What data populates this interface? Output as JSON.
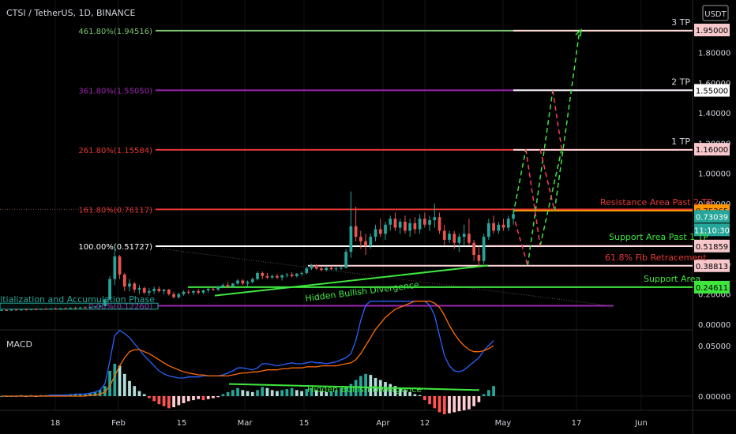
{
  "header": {
    "symbol": "CTSI / TetherUS, 1D, BINANCE"
  },
  "currency_badge": "USDT",
  "macd_label": "MACD",
  "colors": {
    "bg": "#000000",
    "up": "#26a69a",
    "down": "#ef5350",
    "green_line": "#3ee63e",
    "red_line": "#e53935",
    "purple": "#9c27b0",
    "fib_green": "#7cc36f",
    "orange": "#ff9800",
    "macd_line": "#2962ff",
    "signal_line": "#ff6d00"
  },
  "fib_levels": [
    {
      "label": "461.80%(1.94516)",
      "value": 1.94516,
      "color": "#7cc36f",
      "tp": "3 TP"
    },
    {
      "label": "361.80%(1.55050)",
      "value": 1.5505,
      "color": "#9c27b0",
      "tp": "2 TP"
    },
    {
      "label": "261.80%(1.15584)",
      "value": 1.15584,
      "color": "#e53935",
      "tp": "1 TP"
    },
    {
      "label": "161.80%(0.76117)",
      "value": 0.76117,
      "color": "#e53935",
      "tp": ""
    },
    {
      "label": "100.00%(0.51727)",
      "value": 0.51727,
      "color": "#ffffff",
      "tp": ""
    },
    {
      "label": "0.00%(0.12260)",
      "value": 0.1226,
      "color": "#9c27b0",
      "tp": ""
    }
  ],
  "annotations": {
    "resistance": "Resistance Area Past 2 TP",
    "support_past_1tp": "Support Area Past 1 TP",
    "fib_618": "61.8% Fib Retracement",
    "support_area": "Support Area",
    "hidden_div_price": "Hidden Bullish Divergence",
    "hidden_div_macd": "Hidden Bullish Divergence",
    "accumulation": "Initialization and Accumulation Phase"
  },
  "price_axis": {
    "ticks": [
      "1.80000",
      "1.60000",
      "1.40000",
      "1.20000",
      "1.00000",
      "0.80000",
      "0.40000",
      "0.20000",
      "0.00000"
    ],
    "badges": [
      {
        "text": "1.95000",
        "bg": "#f8c8cc",
        "fg": "#000000"
      },
      {
        "text": "1.55000",
        "bg": "#ffffff",
        "fg": "#000000"
      },
      {
        "text": "1.16000",
        "bg": "#f8c8cc",
        "fg": "#000000"
      },
      {
        "text": "0.75365",
        "bg": "#ff9800",
        "fg": "#000000"
      },
      {
        "text": "0.73039",
        "bg": "#26a69a",
        "fg": "#ffffff"
      },
      {
        "text": "11:10:30",
        "bg": "#26a69a",
        "fg": "#ffffff"
      },
      {
        "text": "0.51859",
        "bg": "#f8c8cc",
        "fg": "#000000"
      },
      {
        "text": "0.38813",
        "bg": "#f8c8cc",
        "fg": "#000000"
      },
      {
        "text": "0.24611",
        "bg": "#3ee63e",
        "fg": "#000000"
      }
    ]
  },
  "macd_axis": {
    "ticks": [
      "0.05000",
      "0.00000"
    ]
  },
  "time_axis": {
    "ticks": [
      "18",
      "Feb",
      "15",
      "Mar",
      "15",
      "Apr",
      "12",
      "May",
      "17",
      "Jun"
    ]
  },
  "chart_data": {
    "type": "candlestick",
    "title": "CTSI / TetherUS, 1D, BINANCE",
    "y_unit": "USDT",
    "ylim": [
      0.0,
      2.0
    ],
    "candles": [
      {
        "o": 0.092,
        "h": 0.098,
        "l": 0.088,
        "c": 0.095
      },
      {
        "o": 0.095,
        "h": 0.1,
        "l": 0.09,
        "c": 0.093
      },
      {
        "o": 0.093,
        "h": 0.099,
        "l": 0.089,
        "c": 0.097
      },
      {
        "o": 0.097,
        "h": 0.102,
        "l": 0.092,
        "c": 0.094
      },
      {
        "o": 0.094,
        "h": 0.1,
        "l": 0.09,
        "c": 0.098
      },
      {
        "o": 0.098,
        "h": 0.104,
        "l": 0.094,
        "c": 0.096
      },
      {
        "o": 0.096,
        "h": 0.102,
        "l": 0.092,
        "c": 0.1
      },
      {
        "o": 0.1,
        "h": 0.106,
        "l": 0.095,
        "c": 0.098
      },
      {
        "o": 0.098,
        "h": 0.104,
        "l": 0.094,
        "c": 0.102
      },
      {
        "o": 0.102,
        "h": 0.108,
        "l": 0.097,
        "c": 0.1
      },
      {
        "o": 0.1,
        "h": 0.107,
        "l": 0.096,
        "c": 0.104
      },
      {
        "o": 0.104,
        "h": 0.11,
        "l": 0.099,
        "c": 0.102
      },
      {
        "o": 0.102,
        "h": 0.109,
        "l": 0.098,
        "c": 0.106
      },
      {
        "o": 0.106,
        "h": 0.112,
        "l": 0.1,
        "c": 0.104
      },
      {
        "o": 0.104,
        "h": 0.112,
        "l": 0.1,
        "c": 0.109
      },
      {
        "o": 0.109,
        "h": 0.116,
        "l": 0.104,
        "c": 0.107
      },
      {
        "o": 0.107,
        "h": 0.114,
        "l": 0.103,
        "c": 0.112
      },
      {
        "o": 0.112,
        "h": 0.119,
        "l": 0.107,
        "c": 0.11
      },
      {
        "o": 0.11,
        "h": 0.118,
        "l": 0.105,
        "c": 0.115
      },
      {
        "o": 0.115,
        "h": 0.122,
        "l": 0.11,
        "c": 0.118
      },
      {
        "o": 0.118,
        "h": 0.126,
        "l": 0.112,
        "c": 0.122
      },
      {
        "o": 0.122,
        "h": 0.17,
        "l": 0.12,
        "c": 0.165
      },
      {
        "o": 0.165,
        "h": 0.32,
        "l": 0.16,
        "c": 0.3
      },
      {
        "o": 0.3,
        "h": 0.52,
        "l": 0.26,
        "c": 0.45
      },
      {
        "o": 0.45,
        "h": 0.46,
        "l": 0.3,
        "c": 0.33
      },
      {
        "o": 0.33,
        "h": 0.34,
        "l": 0.22,
        "c": 0.25
      },
      {
        "o": 0.25,
        "h": 0.3,
        "l": 0.22,
        "c": 0.27
      },
      {
        "o": 0.27,
        "h": 0.28,
        "l": 0.21,
        "c": 0.23
      },
      {
        "o": 0.23,
        "h": 0.26,
        "l": 0.2,
        "c": 0.24
      },
      {
        "o": 0.24,
        "h": 0.25,
        "l": 0.2,
        "c": 0.21
      },
      {
        "o": 0.21,
        "h": 0.24,
        "l": 0.19,
        "c": 0.22
      },
      {
        "o": 0.22,
        "h": 0.25,
        "l": 0.2,
        "c": 0.235
      },
      {
        "o": 0.235,
        "h": 0.25,
        "l": 0.21,
        "c": 0.22
      },
      {
        "o": 0.22,
        "h": 0.235,
        "l": 0.2,
        "c": 0.23
      },
      {
        "o": 0.23,
        "h": 0.235,
        "l": 0.19,
        "c": 0.2
      },
      {
        "o": 0.2,
        "h": 0.215,
        "l": 0.17,
        "c": 0.18
      },
      {
        "o": 0.18,
        "h": 0.21,
        "l": 0.17,
        "c": 0.2
      },
      {
        "o": 0.2,
        "h": 0.225,
        "l": 0.19,
        "c": 0.215
      },
      {
        "o": 0.215,
        "h": 0.23,
        "l": 0.2,
        "c": 0.21
      },
      {
        "o": 0.21,
        "h": 0.225,
        "l": 0.195,
        "c": 0.22
      },
      {
        "o": 0.22,
        "h": 0.235,
        "l": 0.2,
        "c": 0.21
      },
      {
        "o": 0.21,
        "h": 0.23,
        "l": 0.2,
        "c": 0.225
      },
      {
        "o": 0.225,
        "h": 0.24,
        "l": 0.21,
        "c": 0.235
      },
      {
        "o": 0.235,
        "h": 0.25,
        "l": 0.22,
        "c": 0.23
      },
      {
        "o": 0.23,
        "h": 0.255,
        "l": 0.22,
        "c": 0.25
      },
      {
        "o": 0.25,
        "h": 0.27,
        "l": 0.24,
        "c": 0.26
      },
      {
        "o": 0.26,
        "h": 0.28,
        "l": 0.24,
        "c": 0.25
      },
      {
        "o": 0.25,
        "h": 0.275,
        "l": 0.24,
        "c": 0.27
      },
      {
        "o": 0.27,
        "h": 0.3,
        "l": 0.26,
        "c": 0.29
      },
      {
        "o": 0.29,
        "h": 0.3,
        "l": 0.26,
        "c": 0.27
      },
      {
        "o": 0.27,
        "h": 0.29,
        "l": 0.25,
        "c": 0.28
      },
      {
        "o": 0.28,
        "h": 0.31,
        "l": 0.27,
        "c": 0.3
      },
      {
        "o": 0.3,
        "h": 0.35,
        "l": 0.29,
        "c": 0.34
      },
      {
        "o": 0.34,
        "h": 0.35,
        "l": 0.3,
        "c": 0.32
      },
      {
        "o": 0.32,
        "h": 0.34,
        "l": 0.3,
        "c": 0.31
      },
      {
        "o": 0.31,
        "h": 0.33,
        "l": 0.3,
        "c": 0.32
      },
      {
        "o": 0.32,
        "h": 0.335,
        "l": 0.3,
        "c": 0.31
      },
      {
        "o": 0.31,
        "h": 0.33,
        "l": 0.29,
        "c": 0.325
      },
      {
        "o": 0.325,
        "h": 0.34,
        "l": 0.31,
        "c": 0.33
      },
      {
        "o": 0.33,
        "h": 0.345,
        "l": 0.31,
        "c": 0.32
      },
      {
        "o": 0.32,
        "h": 0.34,
        "l": 0.31,
        "c": 0.335
      },
      {
        "o": 0.335,
        "h": 0.35,
        "l": 0.32,
        "c": 0.34
      },
      {
        "o": 0.34,
        "h": 0.38,
        "l": 0.33,
        "c": 0.37
      },
      {
        "o": 0.37,
        "h": 0.4,
        "l": 0.36,
        "c": 0.39
      },
      {
        "o": 0.39,
        "h": 0.4,
        "l": 0.36,
        "c": 0.37
      },
      {
        "o": 0.37,
        "h": 0.385,
        "l": 0.35,
        "c": 0.36
      },
      {
        "o": 0.36,
        "h": 0.38,
        "l": 0.35,
        "c": 0.375
      },
      {
        "o": 0.375,
        "h": 0.385,
        "l": 0.36,
        "c": 0.365
      },
      {
        "o": 0.365,
        "h": 0.38,
        "l": 0.35,
        "c": 0.37
      },
      {
        "o": 0.37,
        "h": 0.385,
        "l": 0.36,
        "c": 0.375
      },
      {
        "o": 0.375,
        "h": 0.5,
        "l": 0.37,
        "c": 0.48
      },
      {
        "o": 0.48,
        "h": 0.88,
        "l": 0.44,
        "c": 0.65
      },
      {
        "o": 0.65,
        "h": 0.78,
        "l": 0.55,
        "c": 0.58
      },
      {
        "o": 0.58,
        "h": 0.62,
        "l": 0.5,
        "c": 0.55
      },
      {
        "o": 0.55,
        "h": 0.6,
        "l": 0.46,
        "c": 0.52
      },
      {
        "o": 0.52,
        "h": 0.6,
        "l": 0.5,
        "c": 0.58
      },
      {
        "o": 0.58,
        "h": 0.66,
        "l": 0.55,
        "c": 0.63
      },
      {
        "o": 0.63,
        "h": 0.7,
        "l": 0.58,
        "c": 0.6
      },
      {
        "o": 0.6,
        "h": 0.68,
        "l": 0.56,
        "c": 0.66
      },
      {
        "o": 0.66,
        "h": 0.72,
        "l": 0.62,
        "c": 0.7
      },
      {
        "o": 0.7,
        "h": 0.74,
        "l": 0.62,
        "c": 0.64
      },
      {
        "o": 0.64,
        "h": 0.7,
        "l": 0.6,
        "c": 0.68
      },
      {
        "o": 0.68,
        "h": 0.72,
        "l": 0.6,
        "c": 0.62
      },
      {
        "o": 0.62,
        "h": 0.7,
        "l": 0.58,
        "c": 0.67
      },
      {
        "o": 0.67,
        "h": 0.71,
        "l": 0.6,
        "c": 0.63
      },
      {
        "o": 0.63,
        "h": 0.73,
        "l": 0.6,
        "c": 0.7
      },
      {
        "o": 0.7,
        "h": 0.74,
        "l": 0.64,
        "c": 0.66
      },
      {
        "o": 0.66,
        "h": 0.72,
        "l": 0.62,
        "c": 0.69
      },
      {
        "o": 0.69,
        "h": 0.8,
        "l": 0.64,
        "c": 0.71
      },
      {
        "o": 0.71,
        "h": 0.74,
        "l": 0.6,
        "c": 0.62
      },
      {
        "o": 0.62,
        "h": 0.66,
        "l": 0.52,
        "c": 0.56
      },
      {
        "o": 0.56,
        "h": 0.62,
        "l": 0.54,
        "c": 0.6
      },
      {
        "o": 0.6,
        "h": 0.62,
        "l": 0.5,
        "c": 0.54
      },
      {
        "o": 0.54,
        "h": 0.6,
        "l": 0.48,
        "c": 0.58
      },
      {
        "o": 0.58,
        "h": 0.66,
        "l": 0.52,
        "c": 0.6
      },
      {
        "o": 0.6,
        "h": 0.7,
        "l": 0.52,
        "c": 0.54
      },
      {
        "o": 0.54,
        "h": 0.56,
        "l": 0.42,
        "c": 0.46
      },
      {
        "o": 0.46,
        "h": 0.52,
        "l": 0.38,
        "c": 0.42
      },
      {
        "o": 0.42,
        "h": 0.6,
        "l": 0.4,
        "c": 0.58
      },
      {
        "o": 0.58,
        "h": 0.7,
        "l": 0.56,
        "c": 0.67
      },
      {
        "o": 0.67,
        "h": 0.72,
        "l": 0.6,
        "c": 0.62
      },
      {
        "o": 0.62,
        "h": 0.68,
        "l": 0.6,
        "c": 0.66
      },
      {
        "o": 0.66,
        "h": 0.7,
        "l": 0.62,
        "c": 0.64
      },
      {
        "o": 0.64,
        "h": 0.72,
        "l": 0.62,
        "c": 0.7
      },
      {
        "o": 0.7,
        "h": 0.77,
        "l": 0.66,
        "c": 0.73
      }
    ],
    "macd": {
      "hist": [
        0,
        0,
        0,
        0,
        0.001,
        0,
        0.001,
        0,
        0.001,
        0.001,
        0.001,
        0.001,
        0.001,
        0.001,
        0.002,
        0.002,
        0.002,
        0.002,
        0.003,
        0.004,
        0.006,
        0.01,
        0.025,
        0.032,
        0.03,
        0.022,
        0.015,
        0.01,
        0.005,
        0.002,
        -0.002,
        -0.005,
        -0.008,
        -0.01,
        -0.012,
        -0.011,
        -0.009,
        -0.007,
        -0.005,
        -0.004,
        -0.003,
        -0.004,
        -0.003,
        -0.002,
        -0.001,
        0.002,
        0.004,
        0.006,
        0.008,
        0.006,
        0.005,
        0.004,
        0.006,
        0.009,
        0.008,
        0.006,
        0.005,
        0.006,
        0.007,
        0.008,
        0.006,
        0.005,
        0.007,
        0.008,
        0.006,
        0.005,
        0.004,
        0.005,
        0.006,
        0.008,
        0.01,
        0.012,
        0.016,
        0.02,
        0.022,
        0.021,
        0.018,
        0.016,
        0.014,
        0.012,
        0.01,
        0.008,
        0.006,
        0.004,
        0.002,
        0.001,
        -0.004,
        -0.008,
        -0.012,
        -0.016,
        -0.018,
        -0.017,
        -0.016,
        -0.015,
        -0.014,
        -0.013,
        -0.01,
        -0.006,
        0.002,
        0.006,
        0.01
      ],
      "macd_line": [
        0,
        0,
        0,
        0,
        0,
        0,
        0,
        0,
        0,
        0,
        0.001,
        0.001,
        0.001,
        0.001,
        0.001,
        0.002,
        0.002,
        0.002,
        0.003,
        0.004,
        0.006,
        0.012,
        0.035,
        0.06,
        0.065,
        0.062,
        0.058,
        0.052,
        0.046,
        0.04,
        0.035,
        0.03,
        0.025,
        0.022,
        0.02,
        0.019,
        0.018,
        0.018,
        0.019,
        0.019,
        0.019,
        0.02,
        0.02,
        0.02,
        0.02,
        0.021,
        0.023,
        0.025,
        0.028,
        0.028,
        0.027,
        0.026,
        0.028,
        0.032,
        0.032,
        0.031,
        0.03,
        0.031,
        0.032,
        0.033,
        0.032,
        0.032,
        0.033,
        0.034,
        0.033,
        0.033,
        0.032,
        0.033,
        0.034,
        0.036,
        0.038,
        0.042,
        0.055,
        0.075,
        0.09,
        0.094,
        0.094,
        0.094,
        0.094,
        0.094,
        0.094,
        0.094,
        0.094,
        0.094,
        0.094,
        0.094,
        0.094,
        0.09,
        0.08,
        0.06,
        0.04,
        0.03,
        0.025,
        0.024,
        0.026,
        0.03,
        0.034,
        0.038,
        0.045,
        0.05,
        0.055
      ],
      "signal_line": [
        0,
        0,
        0,
        0,
        0,
        0,
        0,
        0,
        0,
        0,
        0,
        0,
        0,
        0,
        0,
        0,
        0,
        0,
        0.001,
        0.001,
        0.002,
        0.004,
        0.01,
        0.02,
        0.03,
        0.038,
        0.044,
        0.046,
        0.046,
        0.044,
        0.042,
        0.039,
        0.036,
        0.033,
        0.03,
        0.028,
        0.026,
        0.024,
        0.023,
        0.022,
        0.021,
        0.021,
        0.02,
        0.02,
        0.02,
        0.02,
        0.02,
        0.021,
        0.022,
        0.023,
        0.023,
        0.024,
        0.024,
        0.025,
        0.026,
        0.026,
        0.026,
        0.027,
        0.027,
        0.028,
        0.028,
        0.028,
        0.029,
        0.029,
        0.029,
        0.03,
        0.03,
        0.03,
        0.03,
        0.031,
        0.032,
        0.033,
        0.036,
        0.042,
        0.05,
        0.058,
        0.066,
        0.072,
        0.078,
        0.082,
        0.086,
        0.088,
        0.09,
        0.092,
        0.094,
        0.094,
        0.094,
        0.094,
        0.092,
        0.088,
        0.08,
        0.07,
        0.062,
        0.055,
        0.05,
        0.046,
        0.044,
        0.044,
        0.045,
        0.047,
        0.05
      ]
    },
    "overlays": {
      "accumulation_box": {
        "y_low": 0.1,
        "y_high": 0.14
      },
      "price_trend": {
        "p1": [
          0.21,
          0.25
        ],
        "p2": [
          0.61,
          0.39
        ]
      },
      "macd_trend": {
        "y1": 0.012,
        "y2": 0.006
      },
      "hlines": {
        "support_area": 0.24611,
        "fib_618": 0.38813,
        "support_past_1tp": 0.51859,
        "resistance": 0.75365
      },
      "projection": {
        "bull": [
          [
            [
              0.0,
              0.73
            ],
            [
              0.07,
              1.16
            ]
          ],
          [
            [
              0.08,
              0.39
            ],
            [
              0.22,
              1.55
            ]
          ],
          [
            [
              0.23,
              0.75
            ],
            [
              0.37,
              1.95
            ]
          ],
          [
            [
              0.15,
              0.52
            ],
            [
              0.27,
              1.16
            ]
          ]
        ],
        "bear": [
          [
            [
              0.01,
              0.68
            ],
            [
              0.08,
              0.39
            ]
          ],
          [
            [
              0.07,
              1.16
            ],
            [
              0.15,
              0.52
            ]
          ],
          [
            [
              0.15,
              1.16
            ],
            [
              0.23,
              0.75
            ]
          ],
          [
            [
              0.22,
              1.55
            ],
            [
              0.27,
              1.16
            ]
          ]
        ]
      }
    }
  }
}
